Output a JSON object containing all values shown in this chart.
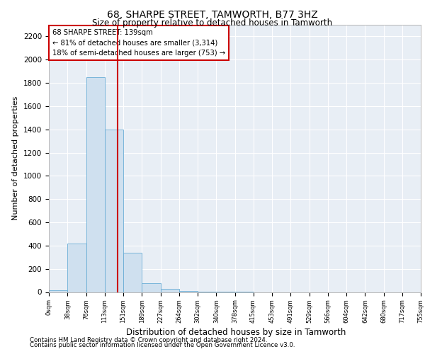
{
  "title1": "68, SHARPE STREET, TAMWORTH, B77 3HZ",
  "title2": "Size of property relative to detached houses in Tamworth",
  "xlabel": "Distribution of detached houses by size in Tamworth",
  "ylabel": "Number of detached properties",
  "footer1": "Contains HM Land Registry data © Crown copyright and database right 2024.",
  "footer2": "Contains public sector information licensed under the Open Government Licence v3.0.",
  "annotation_title": "68 SHARPE STREET: 139sqm",
  "annotation_line1": "← 81% of detached houses are smaller (3,314)",
  "annotation_line2": "18% of semi-detached houses are larger (753) →",
  "property_size": 139,
  "bar_edges": [
    0,
    38,
    76,
    113,
    151,
    189,
    227,
    264,
    302,
    340,
    378,
    415,
    453,
    491,
    529,
    566,
    604,
    642,
    680,
    717,
    755
  ],
  "bar_heights": [
    15,
    420,
    1850,
    1400,
    340,
    75,
    25,
    10,
    5,
    2,
    1,
    0,
    0,
    0,
    0,
    0,
    0,
    0,
    0,
    0
  ],
  "bar_color": "#cfe0ef",
  "bar_edge_color": "#6aaed6",
  "marker_color": "#cc0000",
  "bg_color": "#ffffff",
  "plot_bg_color": "#e8eef5",
  "grid_color": "#ffffff",
  "annotation_box_color": "#cc0000",
  "ylim": [
    0,
    2300
  ],
  "yticks": [
    0,
    200,
    400,
    600,
    800,
    1000,
    1200,
    1400,
    1600,
    1800,
    2000,
    2200
  ]
}
